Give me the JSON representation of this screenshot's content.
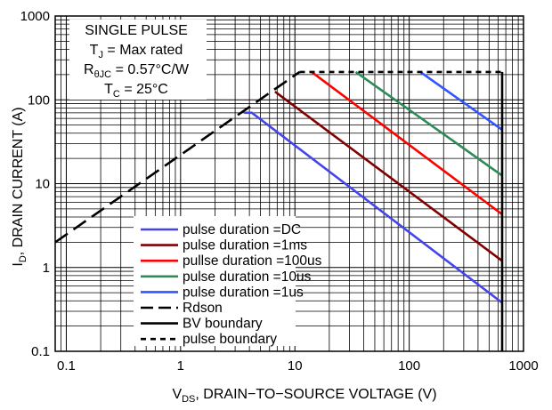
{
  "chart_data": {
    "type": "line",
    "xscale": "log",
    "yscale": "log",
    "xlim": [
      0.08,
      1000
    ],
    "ylim": [
      0.1,
      1000
    ],
    "grid": true,
    "xlabel": {
      "main": "V",
      "sub": "DS",
      "rest": ", DRAIN−TO−SOURCE VOLTAGE (V)"
    },
    "ylabel": {
      "main": "I",
      "sub": "D",
      "rest": ", DRAIN CURRENT (A)"
    },
    "xticks": [
      {
        "value": 0.1,
        "label": "0.1"
      },
      {
        "value": 1,
        "label": "1"
      },
      {
        "value": 10,
        "label": "10"
      },
      {
        "value": 100,
        "label": "100"
      },
      {
        "value": 1000,
        "label": "1000"
      }
    ],
    "yticks": [
      {
        "value": 0.1,
        "label": "0.1"
      },
      {
        "value": 1,
        "label": "1"
      },
      {
        "value": 10,
        "label": "10"
      },
      {
        "value": 100,
        "label": "100"
      },
      {
        "value": 1000,
        "label": "1000"
      }
    ],
    "annotation": {
      "line1": "SINGLE PULSE",
      "line2_main": "T",
      "line2_sub": "J",
      "line2_rest": " = Max rated",
      "line3_main": "R",
      "line3_sub": "θJC",
      "line3_rest": " = 0.57°C/W",
      "line4_main": "T",
      "line4_sub": "C",
      "line4_rest": " = 25°C"
    },
    "legend_position": "bottom-center",
    "series": [
      {
        "name": "pulse duration =DC",
        "color": "#4444ee",
        "dash": "solid",
        "x": [
          3.6,
          4.2,
          650
        ],
        "y": [
          70,
          70,
          0.38
        ]
      },
      {
        "name": "pulse duration =1ms",
        "color": "#800000",
        "dash": "solid",
        "x": [
          6.7,
          650
        ],
        "y": [
          125,
          1.2
        ]
      },
      {
        "name": "pullse duration =100us",
        "color": "#ff0000",
        "dash": "solid",
        "x": [
          14,
          650
        ],
        "y": [
          215,
          4.3
        ]
      },
      {
        "name": "pulse duration =10us",
        "color": "#2e8b57",
        "dash": "solid",
        "x": [
          34,
          650
        ],
        "y": [
          215,
          12.5
        ]
      },
      {
        "name": "pulse duration =1us",
        "color": "#3355ff",
        "dash": "solid",
        "x": [
          125,
          650
        ],
        "y": [
          215,
          44
        ]
      },
      {
        "name": "Rdson",
        "color": "#000000",
        "dash": "longdash",
        "x": [
          0.08,
          11
        ],
        "y": [
          2.0,
          215
        ]
      },
      {
        "name": "BV boundary",
        "color": "#000000",
        "dash": "solid",
        "x": [
          650,
          650
        ],
        "y": [
          0.1,
          215
        ]
      },
      {
        "name": "pulse boundary",
        "color": "#000000",
        "dash": "shortdash",
        "x": [
          11,
          650
        ],
        "y": [
          215,
          215
        ]
      }
    ]
  }
}
